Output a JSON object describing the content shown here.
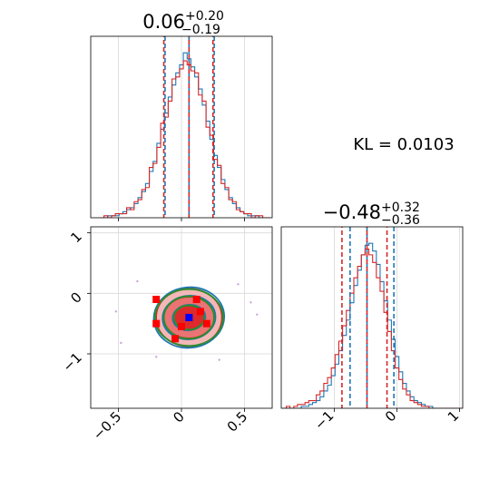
{
  "chart_data": {
    "type": "corner",
    "kl_label": "KL = 0.0103",
    "colors": {
      "a": "#1f77b4",
      "b": "#d62728",
      "fit": "#2e8b2e",
      "peak": "#0000ff",
      "grid": "#d9d9d9"
    },
    "panels": [
      {
        "id": "param1-marginal",
        "title": {
          "main": "0.06",
          "sup": "+0.20",
          "sub": "−0.19"
        },
        "xlim": [
          -0.72,
          0.72
        ],
        "grid": true,
        "x": [
          -0.63,
          -0.6,
          -0.57,
          -0.54,
          -0.51,
          -0.48,
          -0.45,
          -0.42,
          -0.39,
          -0.36,
          -0.33,
          -0.3,
          -0.27,
          -0.24,
          -0.21,
          -0.18,
          -0.15,
          -0.12,
          -0.09,
          -0.06,
          -0.03,
          0.0,
          0.03,
          0.06,
          0.09,
          0.12,
          0.15,
          0.18,
          0.21,
          0.24,
          0.27,
          0.3,
          0.33,
          0.36,
          0.39,
          0.42,
          0.45,
          0.48,
          0.51,
          0.54,
          0.57,
          0.6,
          0.63,
          0.66,
          0.69
        ],
        "series": [
          {
            "color": "#1f77b4",
            "values": [
              0,
              0,
              1,
              1,
              1,
              2,
              3,
              4,
              5,
              7,
              10,
              13,
              17,
              23,
              28,
              37,
              44,
              52,
              60,
              66,
              72,
              76,
              82,
              79,
              75,
              70,
              64,
              56,
              48,
              39,
              31,
              25,
              19,
              14,
              10,
              7,
              5,
              3,
              2,
              1,
              1,
              1,
              0,
              0,
              0
            ]
          },
          {
            "color": "#d62728",
            "values": [
              0,
              1,
              0,
              1,
              2,
              2,
              2,
              5,
              4,
              8,
              9,
              14,
              15,
              25,
              27,
              35,
              47,
              50,
              58,
              69,
              70,
              74,
              78,
              76,
              73,
              72,
              61,
              58,
              45,
              41,
              29,
              26,
              17,
              15,
              9,
              8,
              4,
              3,
              2,
              2,
              0,
              1,
              1,
              0,
              0
            ]
          }
        ],
        "quantiles": {
          "a": [
            -0.13,
            0.06,
            0.26
          ],
          "b": [
            -0.14,
            0.06,
            0.25
          ]
        },
        "ticks": [
          -0.5,
          0.0,
          0.5
        ]
      },
      {
        "id": "param2-marginal",
        "title": {
          "main": "−0.48",
          "sup": "+0.32",
          "sub": "−0.36"
        },
        "xlim": [
          -1.85,
          1.05
        ],
        "grid": true,
        "x": [
          -1.8,
          -1.74,
          -1.68,
          -1.62,
          -1.56,
          -1.5,
          -1.44,
          -1.38,
          -1.32,
          -1.26,
          -1.2,
          -1.14,
          -1.08,
          -1.02,
          -0.96,
          -0.9,
          -0.84,
          -0.78,
          -0.72,
          -0.66,
          -0.6,
          -0.54,
          -0.48,
          -0.42,
          -0.36,
          -0.3,
          -0.24,
          -0.18,
          -0.12,
          -0.06,
          0.0,
          0.06,
          0.12,
          0.18,
          0.24,
          0.3,
          0.36,
          0.42,
          0.48,
          0.54,
          0.6,
          0.66,
          0.72,
          0.78,
          0.84,
          0.9,
          0.96,
          1.02
        ],
        "series": [
          {
            "color": "#1f77b4",
            "values": [
              0,
              0,
              0,
              0,
              0,
              1,
              1,
              2,
              3,
              4,
              6,
              9,
              12,
              17,
              23,
              30,
              38,
              46,
              55,
              64,
              72,
              80,
              85,
              86,
              82,
              75,
              66,
              56,
              46,
              36,
              27,
              19,
              13,
              9,
              6,
              4,
              3,
              2,
              1,
              1,
              0,
              0,
              0,
              0,
              0,
              0,
              0,
              0
            ]
          },
          {
            "color": "#d62728",
            "values": [
              0,
              1,
              0,
              1,
              2,
              2,
              3,
              4,
              4,
              7,
              9,
              13,
              16,
              21,
              28,
              35,
              43,
              51,
              60,
              68,
              74,
              80,
              83,
              80,
              76,
              68,
              61,
              50,
              40,
              30,
              21,
              15,
              10,
              7,
              4,
              3,
              2,
              1,
              1,
              0,
              0,
              0,
              0,
              0,
              0,
              0,
              0,
              0
            ]
          }
        ],
        "quantiles": {
          "a": [
            -0.75,
            -0.48,
            -0.05
          ],
          "b": [
            -0.88,
            -0.48,
            -0.16
          ]
        },
        "ticks": [
          -1,
          0,
          1
        ]
      },
      {
        "id": "joint",
        "xlim": [
          -0.72,
          0.72
        ],
        "ylim": [
          -1.9,
          1.1
        ],
        "grid": true,
        "center": [
          0.06,
          -0.4
        ],
        "peak": [
          0.06,
          -0.4
        ],
        "contours": [
          {
            "set": "b-fill",
            "levels": [
              [
                0.26,
                0.48
              ],
              [
                0.2,
                0.34
              ],
              [
                0.12,
                0.2
              ]
            ]
          },
          {
            "set": "a-line",
            "levels": [
              [
                0.28,
                0.5
              ],
              [
                0.21,
                0.36
              ],
              [
                0.13,
                0.21
              ]
            ]
          },
          {
            "set": "fit",
            "levels": [
              [
                0.27,
                0.47
              ],
              [
                0.2,
                0.35
              ],
              [
                0.12,
                0.2
              ]
            ]
          }
        ],
        "xticks": [
          -0.5,
          0.0,
          0.5
        ],
        "yticks": [
          -1,
          0,
          1
        ]
      }
    ]
  }
}
